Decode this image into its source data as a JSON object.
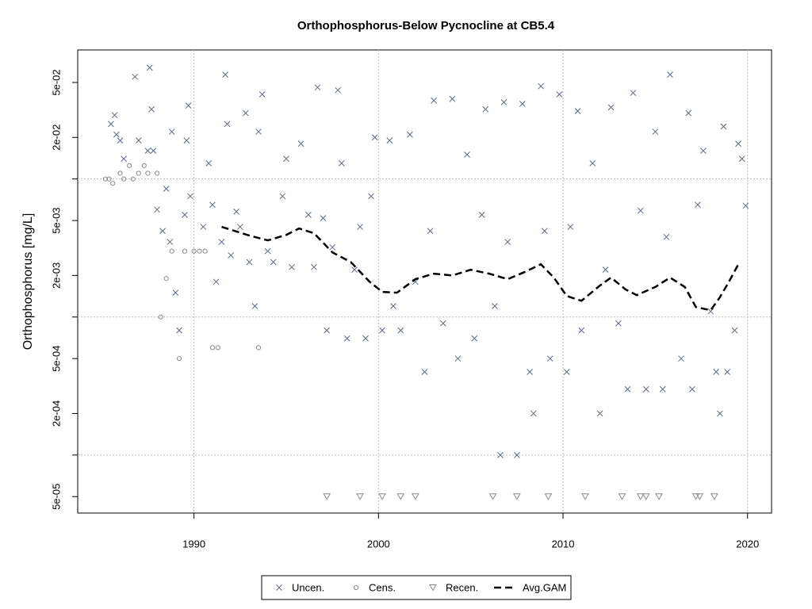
{
  "chart_data": {
    "type": "scatter",
    "title": "Orthophosphorus-Below Pycnocline at CB5.4",
    "y_label": "Orthophosphorus [mg/L]",
    "log_y": true,
    "grid": true,
    "legend_position": "bottom",
    "xlim": [
      1983.7,
      2021.3
    ],
    "ylim": [
      3.8e-05,
      0.086
    ],
    "xticks": [
      1990,
      2000,
      2010,
      2020
    ],
    "yticks": [
      {
        "value": 0.05,
        "label": "5e-02"
      },
      {
        "value": 0.02,
        "label": "2e-02"
      },
      {
        "value": 0.005,
        "label": "5e-03"
      },
      {
        "value": 0.002,
        "label": "2e-03"
      },
      {
        "value": 0.0005,
        "label": "5e-04"
      },
      {
        "value": 0.0002,
        "label": "2e-04"
      },
      {
        "value": 5e-05,
        "label": "5e-05"
      }
    ],
    "ygrid": [
      0.01,
      0.001,
      0.0001
    ],
    "series": [
      {
        "name": "Uncen.",
        "marker": "x",
        "color": "#5b6b82",
        "x": [
          1985.5,
          1985.7,
          1985.8,
          1986.0,
          1986.2,
          1986.8,
          1987.0,
          1987.5,
          1987.6,
          1987.7,
          1987.8,
          1988.0,
          1988.3,
          1988.5,
          1988.7,
          1988.8,
          1989.0,
          1989.2,
          1989.5,
          1989.6,
          1989.7,
          1989.8,
          1990.5,
          1990.8,
          1991.0,
          1991.2,
          1991.5,
          1991.7,
          1991.8,
          1992.0,
          1992.3,
          1992.5,
          1992.8,
          1993.0,
          1993.3,
          1993.5,
          1993.7,
          1994.0,
          1994.3,
          1994.8,
          1995.0,
          1995.3,
          1995.8,
          1996.2,
          1996.5,
          1996.7,
          1997.0,
          1997.2,
          1997.5,
          1997.8,
          1998.0,
          1998.3,
          1998.7,
          1999.0,
          1999.3,
          1999.6,
          1999.8,
          2000.2,
          2000.6,
          2000.8,
          2001.2,
          2001.7,
          2002.0,
          2002.5,
          2002.8,
          2003.0,
          2003.5,
          2004.0,
          2004.3,
          2004.8,
          2005.2,
          2005.6,
          2005.8,
          2006.3,
          2006.6,
          2006.8,
          2007.0,
          2007.5,
          2007.8,
          2008.2,
          2008.4,
          2008.8,
          2009.0,
          2009.3,
          2009.8,
          2010.2,
          2010.4,
          2010.8,
          2011.0,
          2011.6,
          2012.0,
          2012.3,
          2012.6,
          2013.0,
          2013.5,
          2013.8,
          2014.2,
          2014.5,
          2015.0,
          2015.4,
          2015.6,
          2015.8,
          2016.4,
          2016.8,
          2017.0,
          2017.3,
          2017.6,
          2018.0,
          2018.3,
          2018.5,
          2018.7,
          2018.9,
          2019.3,
          2019.5,
          2019.7,
          2019.9
        ],
        "values": [
          0.025,
          0.029,
          0.021,
          0.019,
          0.014,
          0.055,
          0.019,
          0.016,
          0.064,
          0.032,
          0.016,
          0.006,
          0.0042,
          0.0085,
          0.0035,
          0.022,
          0.0015,
          0.0008,
          0.0055,
          0.019,
          0.034,
          0.0075,
          0.0045,
          0.013,
          0.0065,
          0.0018,
          0.0035,
          0.057,
          0.025,
          0.0028,
          0.0058,
          0.0045,
          0.03,
          0.0025,
          0.0012,
          0.022,
          0.041,
          0.003,
          0.0025,
          0.0075,
          0.014,
          0.0023,
          0.018,
          0.0055,
          0.0023,
          0.046,
          0.0052,
          0.0008,
          0.0032,
          0.044,
          0.013,
          0.0007,
          0.0022,
          0.0045,
          0.0007,
          0.0075,
          0.02,
          0.0008,
          0.019,
          0.0012,
          0.0008,
          0.021,
          0.0018,
          0.0004,
          0.0042,
          0.037,
          0.0009,
          0.038,
          0.0005,
          0.015,
          0.0007,
          0.0055,
          0.032,
          0.0012,
          0.0001,
          0.036,
          0.0035,
          0.0001,
          0.035,
          0.0004,
          0.0002,
          0.047,
          0.0042,
          0.0005,
          0.041,
          0.0004,
          0.0045,
          0.031,
          0.0008,
          0.013,
          0.0002,
          0.0022,
          0.033,
          0.0009,
          0.0003,
          0.042,
          0.0059,
          0.0003,
          0.022,
          0.0003,
          0.0038,
          0.057,
          0.0005,
          0.03,
          0.0003,
          0.0065,
          0.016,
          0.0011,
          0.0004,
          0.0002,
          0.024,
          0.0004,
          0.0008,
          0.018,
          0.014,
          0.0064
        ]
      },
      {
        "name": "Cens.",
        "marker": "circle",
        "color": "#8a8a8a",
        "x": [
          1985.2,
          1985.4,
          1985.6,
          1986.0,
          1986.2,
          1986.5,
          1986.7,
          1987.0,
          1987.3,
          1987.5,
          1988.0,
          1988.2,
          1988.5,
          1988.8,
          1989.2,
          1989.5,
          1990.0,
          1990.3,
          1990.6,
          1991.0,
          1991.3,
          1993.5
        ],
        "values": [
          0.01,
          0.01,
          0.0093,
          0.011,
          0.01,
          0.0125,
          0.01,
          0.011,
          0.0125,
          0.011,
          0.011,
          0.001,
          0.0019,
          0.003,
          0.0005,
          0.003,
          0.003,
          0.003,
          0.003,
          0.0006,
          0.0006,
          0.0006
        ]
      },
      {
        "name": "Recen.",
        "marker": "triangle",
        "color": "#8a8a8a",
        "x": [
          1997.2,
          1999.0,
          2000.2,
          2001.2,
          2002.0,
          2006.2,
          2007.5,
          2009.2,
          2011.2,
          2013.2,
          2014.2,
          2014.5,
          2015.2,
          2017.2,
          2017.4,
          2018.2
        ],
        "values": [
          5e-05,
          5e-05,
          5e-05,
          5e-05,
          5e-05,
          5e-05,
          5e-05,
          5e-05,
          5e-05,
          5e-05,
          5e-05,
          5e-05,
          5e-05,
          5e-05,
          5e-05,
          5e-05
        ]
      },
      {
        "name": "Avg.GAM",
        "marker": "dashed-line",
        "color": "#000000",
        "x": [
          1991.5,
          1993.0,
          1994.0,
          1995.0,
          1995.7,
          1996.5,
          1997.5,
          1998.5,
          1999.5,
          2000.2,
          2001.0,
          2002.0,
          2003.0,
          2004.0,
          2005.0,
          2006.0,
          2007.0,
          2008.0,
          2008.8,
          2009.5,
          2010.2,
          2011.0,
          2012.0,
          2012.6,
          2013.4,
          2014.0,
          2015.0,
          2015.8,
          2016.6,
          2017.2,
          2018.0,
          2018.5,
          2019.0,
          2019.5
        ],
        "values": [
          0.0045,
          0.00389,
          0.00359,
          0.00393,
          0.00438,
          0.00405,
          0.00294,
          0.0025,
          0.00181,
          0.00152,
          0.0015,
          0.00188,
          0.00206,
          0.002,
          0.0022,
          0.00206,
          0.00188,
          0.00214,
          0.00241,
          0.00193,
          0.00142,
          0.00131,
          0.00169,
          0.00193,
          0.00158,
          0.00144,
          0.00165,
          0.00193,
          0.00165,
          0.00118,
          0.00112,
          0.00139,
          0.00181,
          0.00241
        ]
      }
    ]
  }
}
